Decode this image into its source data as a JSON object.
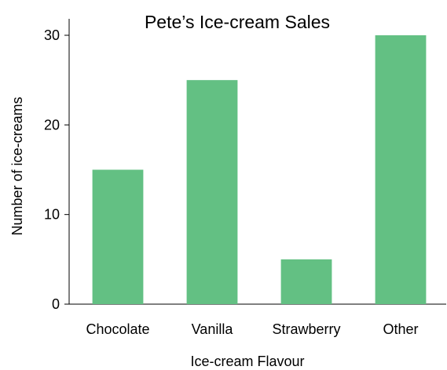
{
  "chart_data": {
    "type": "bar",
    "title": "Pete’s Ice-cream Sales",
    "xlabel": "Ice-cream Flavour",
    "ylabel": "Number of ice-creams",
    "categories": [
      "Chocolate",
      "Vanilla",
      "Strawberry",
      "Other"
    ],
    "values": [
      15,
      25,
      5,
      30
    ],
    "ylim": [
      0,
      30
    ],
    "yticks": [
      0,
      10,
      20,
      30
    ],
    "grid": false,
    "bar_color": "#63c083"
  }
}
